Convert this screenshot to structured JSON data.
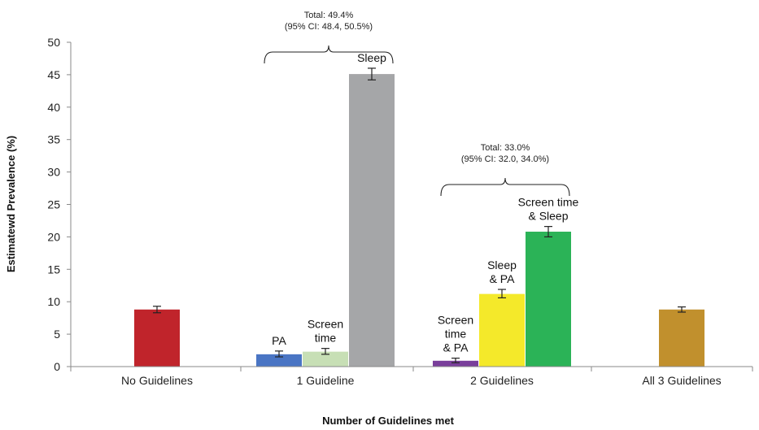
{
  "chart_data": {
    "type": "bar",
    "xlabel": "Number of Guidelines met",
    "ylabel": "Estimatewd Prevalence (%)",
    "ylim": [
      0,
      50
    ],
    "yticks": [
      0,
      5,
      10,
      15,
      20,
      25,
      30,
      35,
      40,
      45,
      50
    ],
    "grid": false,
    "categories": [
      "No Guidelines",
      "1 Guideline",
      "2 Guidelines",
      "All 3 Guidelines"
    ],
    "bars": [
      {
        "category": "No Guidelines",
        "label": [],
        "value": 8.8,
        "err_low": 8.3,
        "err_high": 9.3,
        "color": "#c0242b"
      },
      {
        "category": "1 Guideline",
        "label": [
          "PA"
        ],
        "value": 1.9,
        "err_low": 1.5,
        "err_high": 2.4,
        "color": "#4a75c4"
      },
      {
        "category": "1 Guideline",
        "label": [
          "Screen",
          "time"
        ],
        "value": 2.3,
        "err_low": 1.9,
        "err_high": 2.8,
        "color": "#c7dfb5"
      },
      {
        "category": "1 Guideline",
        "label": [
          "Sleep"
        ],
        "value": 45.1,
        "err_low": 44.2,
        "err_high": 46.0,
        "color": "#a5a6a8"
      },
      {
        "category": "2 Guidelines",
        "label": [
          "Screen",
          "time",
          "& PA"
        ],
        "value": 0.9,
        "err_low": 0.6,
        "err_high": 1.3,
        "color": "#7a3f9b"
      },
      {
        "category": "2 Guidelines",
        "label": [
          "Sleep",
          "& PA"
        ],
        "value": 11.2,
        "err_low": 10.6,
        "err_high": 11.9,
        "color": "#f4e92a"
      },
      {
        "category": "2 Guidelines",
        "label": [
          "Screen time",
          "& Sleep"
        ],
        "value": 20.8,
        "err_low": 20.0,
        "err_high": 21.6,
        "color": "#2bb357"
      },
      {
        "category": "All 3 Guidelines",
        "label": [],
        "value": 8.8,
        "err_low": 8.4,
        "err_high": 9.2,
        "color": "#c1902d"
      }
    ],
    "annotations": [
      {
        "category": "1 Guideline",
        "lines": [
          "Total: 49.4%",
          "(95% CI: 48.4, 50.5%)"
        ]
      },
      {
        "category": "2 Guidelines",
        "lines": [
          "Total: 33.0%",
          "(95% CI: 32.0, 34.0%)"
        ]
      }
    ]
  }
}
